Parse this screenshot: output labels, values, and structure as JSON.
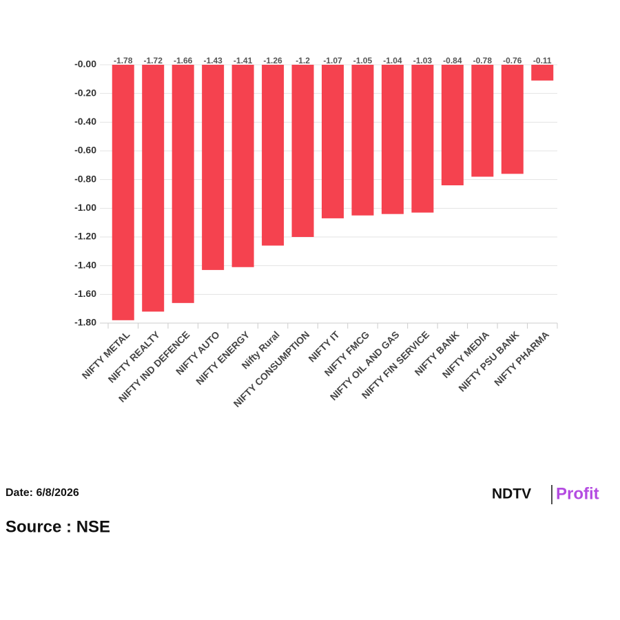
{
  "chart_data": {
    "type": "bar",
    "categories": [
      "NIFTY METAL",
      "NIFTY REALTY",
      "NIFTY IND DEFENCE",
      "NIFTY AUTO",
      "NIFTY ENERGY",
      "Nifty Rural",
      "NIFTY CONSUMPTION",
      "NIFTY IT",
      "NIFTY FMCG",
      "NIFTY OIL AND GAS",
      "NIFTY FIN SERVICE",
      "NIFTY BANK",
      "NIFTY MEDIA",
      "NIFTY PSU BANK",
      "NIFTY PHARMA"
    ],
    "values": [
      -1.78,
      -1.72,
      -1.66,
      -1.43,
      -1.41,
      -1.26,
      -1.2,
      -1.07,
      -1.05,
      -1.04,
      -1.03,
      -0.84,
      -0.78,
      -0.76,
      -0.11
    ],
    "color": "#f5424f",
    "ylim": [
      -1.8,
      0
    ],
    "yticks": [
      {
        "value": 0,
        "label": "-0.00"
      },
      {
        "value": -0.2,
        "label": "-0.20"
      },
      {
        "value": -0.4,
        "label": "-0.40"
      },
      {
        "value": -0.6,
        "label": "-0.60"
      },
      {
        "value": -0.8,
        "label": "-0.80"
      },
      {
        "value": -1,
        "label": "-1.00"
      },
      {
        "value": -1.2,
        "label": "-1.20"
      },
      {
        "value": -1.4,
        "label": "-1.40"
      },
      {
        "value": -1.6,
        "label": "-1.60"
      },
      {
        "value": -1.8,
        "label": "-1.80"
      }
    ],
    "grid": true
  },
  "footer": {
    "date": "Date: 6/8/2026",
    "source": "Source : NSE",
    "logo_brand": "NDTV",
    "logo_product": "Profit"
  }
}
